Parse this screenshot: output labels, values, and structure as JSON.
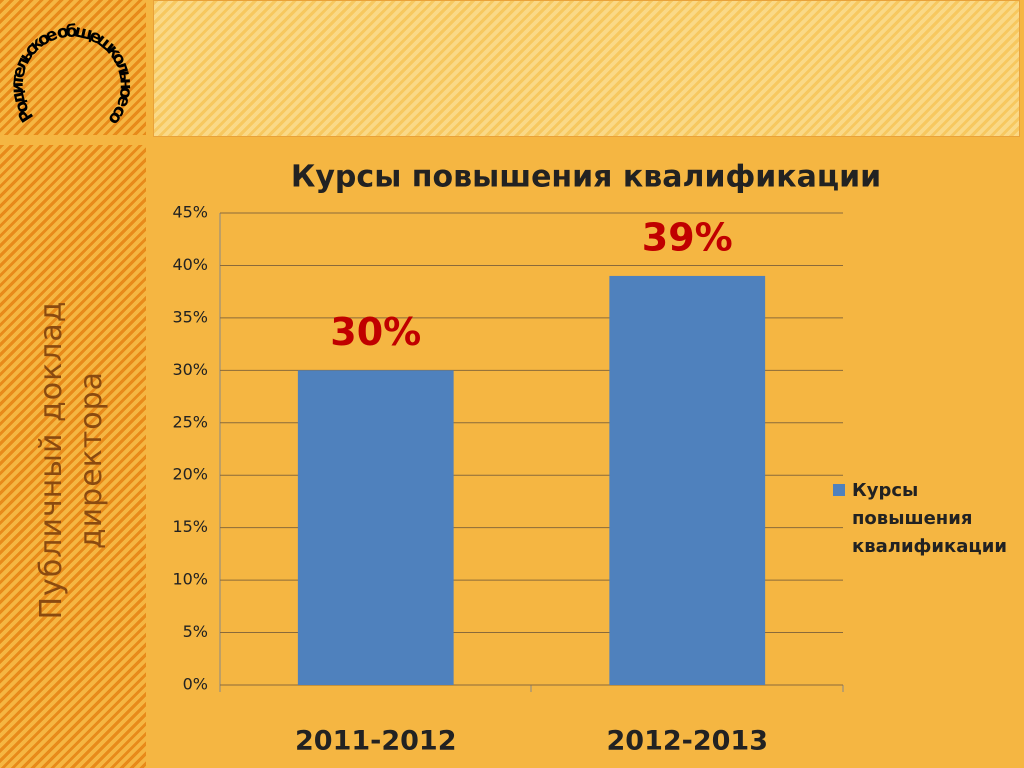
{
  "slide": {
    "badge": "Родительское общешкольное собрание",
    "side_title": "Публичный доклад директора"
  },
  "chart_data": {
    "type": "bar",
    "title": "Курсы повышения квалификации",
    "categories": [
      "2011-2012",
      "2012-2013"
    ],
    "series": [
      {
        "name": "Курсы повышения квалификации",
        "color": "#4f81bd",
        "values": [
          30,
          39
        ],
        "value_labels": [
          "30%",
          "39%"
        ]
      }
    ],
    "ylim": [
      0,
      45
    ],
    "yticks": [
      {
        "value": 0,
        "label": "0%"
      },
      {
        "value": 5,
        "label": "5%"
      },
      {
        "value": 10,
        "label": "10%"
      },
      {
        "value": 15,
        "label": "15%"
      },
      {
        "value": 20,
        "label": "20%"
      },
      {
        "value": 25,
        "label": "25%"
      },
      {
        "value": 30,
        "label": "30%"
      },
      {
        "value": 35,
        "label": "35%"
      },
      {
        "value": 40,
        "label": "40%"
      },
      {
        "value": 45,
        "label": "45%"
      }
    ],
    "grid": true,
    "legend": "right"
  }
}
